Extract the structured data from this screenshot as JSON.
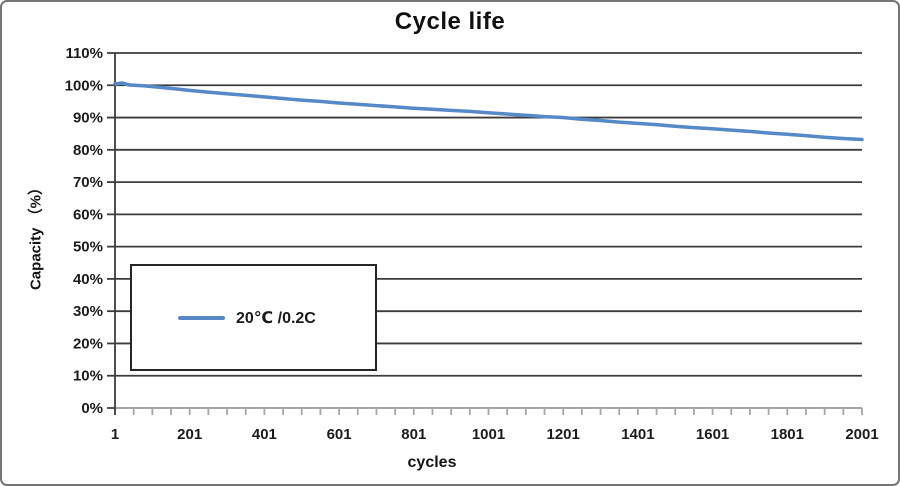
{
  "window": {
    "background": "#ffffff",
    "frame_border_color": "#757575"
  },
  "chart_data": {
    "type": "line",
    "title": "Cycle life",
    "xlabel": "cycles",
    "ylabel": "Capacity （%）",
    "xlim": [
      1,
      2001
    ],
    "ylim_percent": [
      0,
      110
    ],
    "x_major_ticks": [
      1,
      201,
      401,
      601,
      801,
      1001,
      1201,
      1401,
      1601,
      1801,
      2001
    ],
    "x_minor_tick_step": 50,
    "y_ticks_percent": [
      0,
      10,
      20,
      30,
      40,
      50,
      60,
      70,
      80,
      90,
      100,
      110
    ],
    "y_tick_suffix": "%",
    "grid": "horizontal-only",
    "legend_position": "inside-middle-left",
    "colors": {
      "series_blue": "#5589c8",
      "gridline": "#3d3d3d",
      "axis_light": "#a6a6a6",
      "text": "#1c1c1c"
    },
    "series": [
      {
        "name": "20℃ /0.2C",
        "color": "#5589c8",
        "points": [
          [
            1,
            100.4
          ],
          [
            20,
            100.7
          ],
          [
            40,
            100.1
          ],
          [
            80,
            99.8
          ],
          [
            120,
            99.4
          ],
          [
            160,
            98.9
          ],
          [
            200,
            98.4
          ],
          [
            250,
            97.9
          ],
          [
            300,
            97.4
          ],
          [
            350,
            96.9
          ],
          [
            400,
            96.4
          ],
          [
            450,
            95.9
          ],
          [
            500,
            95.4
          ],
          [
            550,
            95.0
          ],
          [
            600,
            94.5
          ],
          [
            650,
            94.1
          ],
          [
            700,
            93.7
          ],
          [
            750,
            93.3
          ],
          [
            800,
            92.9
          ],
          [
            850,
            92.6
          ],
          [
            900,
            92.2
          ],
          [
            950,
            91.9
          ],
          [
            1000,
            91.5
          ],
          [
            1050,
            91.1
          ],
          [
            1100,
            90.7
          ],
          [
            1150,
            90.3
          ],
          [
            1200,
            90.0
          ],
          [
            1250,
            89.5
          ],
          [
            1300,
            89.1
          ],
          [
            1350,
            88.6
          ],
          [
            1400,
            88.2
          ],
          [
            1450,
            87.8
          ],
          [
            1500,
            87.3
          ],
          [
            1550,
            86.9
          ],
          [
            1600,
            86.5
          ],
          [
            1650,
            86.1
          ],
          [
            1700,
            85.7
          ],
          [
            1750,
            85.2
          ],
          [
            1800,
            84.8
          ],
          [
            1850,
            84.4
          ],
          [
            1900,
            83.9
          ],
          [
            1950,
            83.5
          ],
          [
            2001,
            83.2
          ]
        ]
      }
    ]
  }
}
